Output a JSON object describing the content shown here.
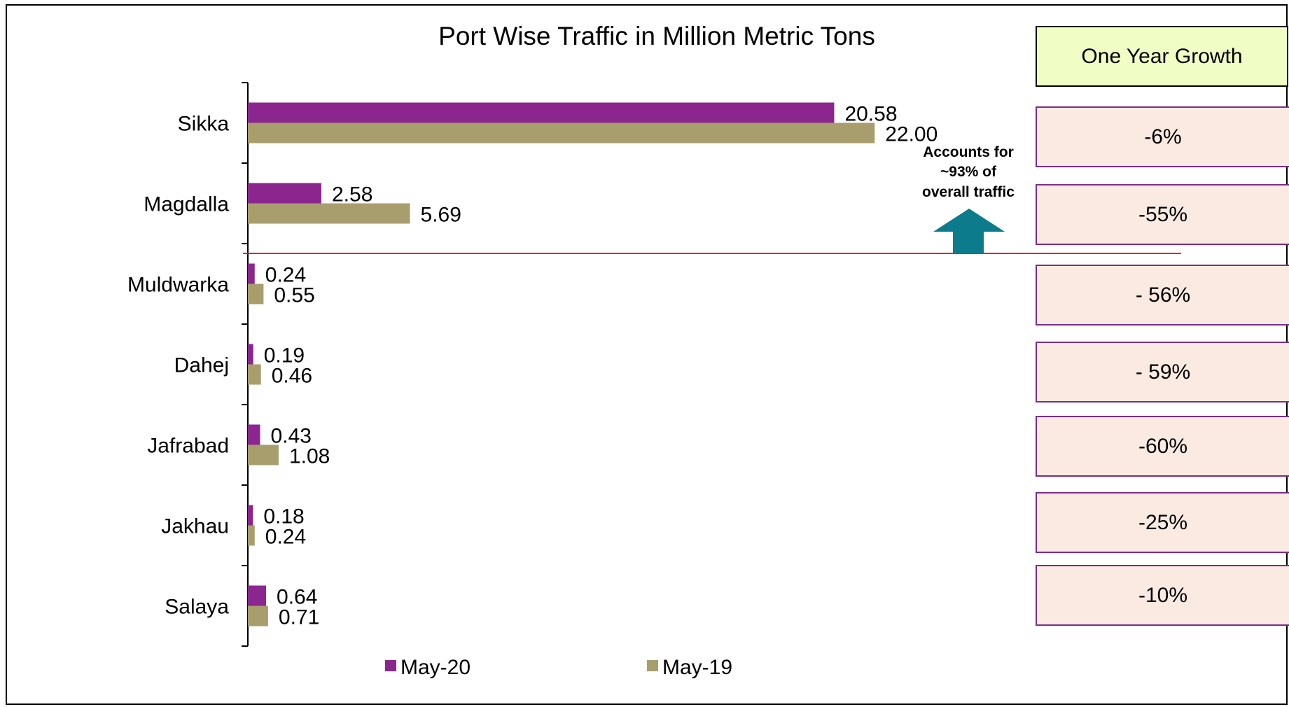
{
  "chart_data": {
    "type": "bar",
    "orientation": "horizontal",
    "title": "Port Wise Traffic in Million Metric Tons",
    "categories": [
      "Sikka",
      "Magdalla",
      "Muldwarka",
      "Dahej",
      "Jafrabad",
      "Jakhau",
      "Salaya"
    ],
    "series": [
      {
        "name": "May-20",
        "color": "#8b268e",
        "values": [
          20.58,
          2.58,
          0.24,
          0.19,
          0.43,
          0.18,
          0.64
        ],
        "labels": [
          "20.58",
          "2.58",
          "0.24",
          "0.19",
          "0.43",
          "0.18",
          "0.64"
        ]
      },
      {
        "name": "May-19",
        "color": "#a89d6c",
        "values": [
          22.0,
          5.69,
          0.55,
          0.46,
          1.08,
          0.24,
          0.71
        ],
        "labels": [
          "22.00",
          "5.69",
          "0.55",
          "0.46",
          "1.08",
          "0.24",
          "0.71"
        ]
      }
    ],
    "xlim": [
      0,
      26
    ],
    "grid": false,
    "legend": "bottom",
    "annotation": {
      "lines": [
        "Accounts for",
        "~93% of",
        "overall traffic"
      ],
      "arrow_color": "#0c7b8b",
      "divider_color": "#ee1c24"
    }
  },
  "growth": {
    "header": "One Year Growth",
    "values": [
      "-6%",
      "-55%",
      "- 56%",
      "- 59%",
      "-60%",
      "-25%",
      "-10%"
    ]
  }
}
